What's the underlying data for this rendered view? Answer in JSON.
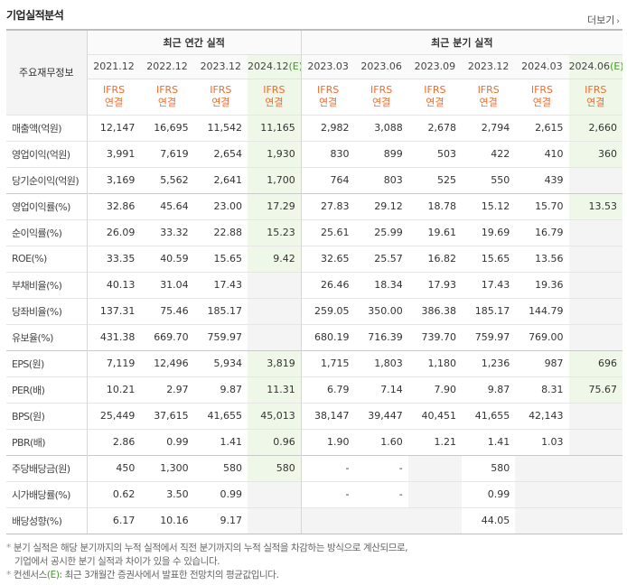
{
  "header": {
    "title": "기업실적분석",
    "more_label": "더보기"
  },
  "table": {
    "corner_label": "주요재무정보",
    "groups": {
      "annual": "최근 연간 실적",
      "quarterly": "최근 분기 실적"
    },
    "periods": [
      "2021.12",
      "2022.12",
      "2023.12",
      "2024.12",
      "2023.03",
      "2023.06",
      "2023.09",
      "2023.12",
      "2024.03",
      "2024.06"
    ],
    "estimate_mark": "(E)",
    "ifrs_top": "IFRS",
    "ifrs_bottom": "연결",
    "rows": [
      {
        "label": "매출액(억원)",
        "values": [
          "12,147",
          "16,695",
          "11,542",
          "11,165",
          "2,982",
          "3,088",
          "2,678",
          "2,794",
          "2,615",
          "2,660"
        ]
      },
      {
        "label": "영업이익(억원)",
        "values": [
          "3,991",
          "7,619",
          "2,654",
          "1,930",
          "830",
          "899",
          "503",
          "422",
          "410",
          "360"
        ]
      },
      {
        "label": "당기순이익(억원)",
        "values": [
          "3,169",
          "5,562",
          "2,641",
          "1,700",
          "764",
          "803",
          "525",
          "550",
          "439",
          ""
        ]
      },
      {
        "label": "영업이익률(%)",
        "values": [
          "32.86",
          "45.64",
          "23.00",
          "17.29",
          "27.83",
          "29.12",
          "18.78",
          "15.12",
          "15.70",
          "13.53"
        ]
      },
      {
        "label": "순이익률(%)",
        "values": [
          "26.09",
          "33.32",
          "22.88",
          "15.23",
          "25.61",
          "25.99",
          "19.61",
          "19.69",
          "16.79",
          ""
        ]
      },
      {
        "label": "ROE(%)",
        "values": [
          "33.35",
          "40.59",
          "15.65",
          "9.42",
          "32.65",
          "25.57",
          "16.82",
          "15.65",
          "13.56",
          ""
        ]
      },
      {
        "label": "부채비율(%)",
        "values": [
          "40.13",
          "31.04",
          "17.43",
          "",
          "26.46",
          "18.34",
          "17.93",
          "17.43",
          "19.36",
          ""
        ]
      },
      {
        "label": "당좌비율(%)",
        "values": [
          "137.31",
          "75.46",
          "185.17",
          "",
          "259.05",
          "350.00",
          "386.38",
          "185.17",
          "144.79",
          ""
        ]
      },
      {
        "label": "유보율(%)",
        "values": [
          "431.38",
          "669.70",
          "759.97",
          "",
          "680.19",
          "716.39",
          "739.70",
          "759.97",
          "769.00",
          ""
        ]
      },
      {
        "label": "EPS(원)",
        "values": [
          "7,119",
          "12,496",
          "5,934",
          "3,819",
          "1,715",
          "1,803",
          "1,180",
          "1,236",
          "987",
          "696"
        ]
      },
      {
        "label": "PER(배)",
        "values": [
          "10.21",
          "2.97",
          "9.87",
          "11.31",
          "6.79",
          "7.14",
          "7.90",
          "9.87",
          "8.31",
          "75.67"
        ]
      },
      {
        "label": "BPS(원)",
        "values": [
          "25,449",
          "37,615",
          "41,655",
          "45,013",
          "38,147",
          "39,447",
          "40,451",
          "41,655",
          "42,143",
          ""
        ]
      },
      {
        "label": "PBR(배)",
        "values": [
          "2.86",
          "0.99",
          "1.41",
          "0.96",
          "1.90",
          "1.60",
          "1.21",
          "1.41",
          "1.03",
          ""
        ]
      },
      {
        "label": "주당배당금(원)",
        "values": [
          "450",
          "1,300",
          "580",
          "580",
          "-",
          "-",
          "",
          "580",
          "",
          ""
        ]
      },
      {
        "label": "시가배당률(%)",
        "values": [
          "0.62",
          "3.50",
          "0.99",
          "",
          "-",
          "-",
          "",
          "0.99",
          "",
          ""
        ]
      },
      {
        "label": "배당성향(%)",
        "values": [
          "6.17",
          "10.16",
          "9.17",
          "",
          "",
          "",
          "",
          "44.05",
          "",
          ""
        ]
      }
    ]
  },
  "notes": {
    "line1": "분기 실적은 해당 분기까지의 누적 실적에서 직전 분기까지의 누적 실적을 차감하는 방식으로 계산되므로,",
    "line2": "기업에서 공시한 분기 실적과 차이가 있을 수 있습니다.",
    "line3_prefix": "컨센서스",
    "line3_mark": "(E)",
    "line3_suffix": ": 최근 3개월간 증권사에서 발표한 전망치의 평균값입니다.",
    "bullet": "*"
  }
}
